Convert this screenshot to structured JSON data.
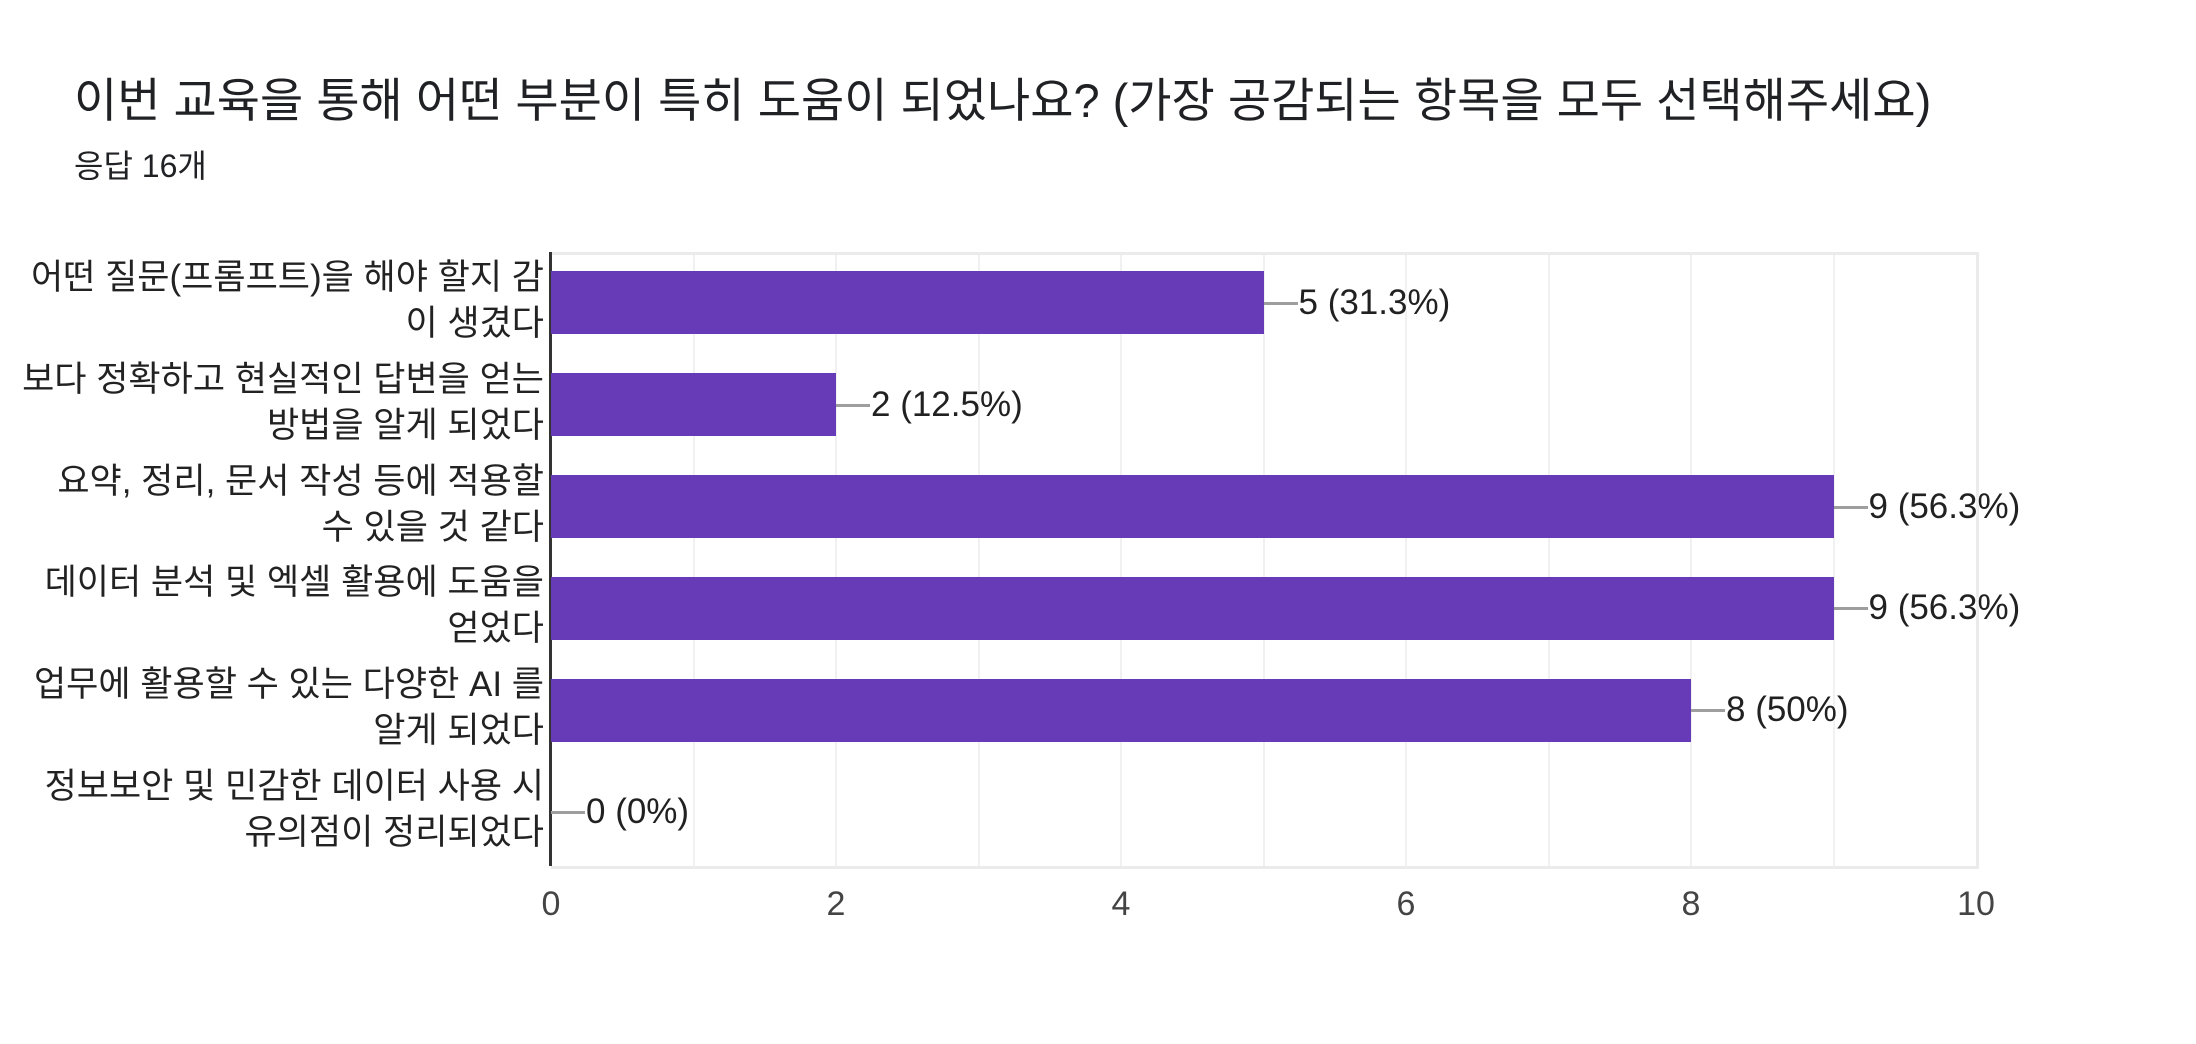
{
  "header": {
    "title": "이번 교육을 통해 어떤 부분이 특히 도움이 되었나요? (가장 공감되는 항목을 모두 선택해주세요)",
    "response_count": "응답 16개"
  },
  "colors": {
    "bar": "#673ab7",
    "connector": "#9e9e9e",
    "axis": "#333333",
    "grid": "#f1f1f1"
  },
  "axis": {
    "ticks": [
      "0",
      "2",
      "4",
      "6",
      "8",
      "10"
    ],
    "min": 0,
    "max": 10
  },
  "rows": [
    {
      "label_lines": [
        "어떤 질문(프롬프트)을 해야 할지 감",
        "이 생겼다"
      ],
      "value": 5,
      "value_label": "5 (31.3%)"
    },
    {
      "label_lines": [
        "보다 정확하고 현실적인 답변을 얻는",
        "방법을 알게 되었다"
      ],
      "value": 2,
      "value_label": "2 (12.5%)"
    },
    {
      "label_lines": [
        "요약, 정리, 문서 작성 등에 적용할",
        "수 있을 것 같다"
      ],
      "value": 9,
      "value_label": "9 (56.3%)"
    },
    {
      "label_lines": [
        "데이터 분석 및 엑셀 활용에 도움을",
        "얻었다"
      ],
      "value": 9,
      "value_label": "9 (56.3%)"
    },
    {
      "label_lines": [
        "업무에 활용할 수 있는 다양한 AI 를",
        "알게 되었다"
      ],
      "value": 8,
      "value_label": "8 (50%)"
    },
    {
      "label_lines": [
        "정보보안 및 민감한 데이터 사용 시",
        "유의점이 정리되었다"
      ],
      "value": 0,
      "value_label": "0 (0%)"
    }
  ],
  "chart_data": {
    "type": "bar",
    "orientation": "horizontal",
    "title": "이번 교육을 통해 어떤 부분이 특히 도움이 되었나요? (가장 공감되는 항목을 모두 선택해주세요)",
    "subtitle": "응답 16개",
    "categories": [
      "어떤 질문(프롬프트)을 해야 할지 감이 생겼다",
      "보다 정확하고 현실적인 답변을 얻는 방법을 알게 되었다",
      "요약, 정리, 문서 작성 등에 적용할 수 있을 것 같다",
      "데이터 분석 및 엑셀 활용에 도움을 얻었다",
      "업무에 활용할 수 있는 다양한 AI 를 알게 되었다",
      "정보보안 및 민감한 데이터 사용 시 유의점이 정리되었다"
    ],
    "values": [
      5,
      2,
      9,
      9,
      8,
      0
    ],
    "percentages": [
      31.3,
      12.5,
      56.3,
      56.3,
      50,
      0
    ],
    "data_labels": [
      "5 (31.3%)",
      "2 (12.5%)",
      "9 (56.3%)",
      "9 (56.3%)",
      "8 (50%)",
      "0 (0%)"
    ],
    "xlabel": "",
    "ylabel": "",
    "xlim": [
      0,
      10
    ],
    "xticks": [
      0,
      2,
      4,
      6,
      8,
      10
    ],
    "grid": true,
    "legend": "none",
    "color": "#673ab7"
  }
}
